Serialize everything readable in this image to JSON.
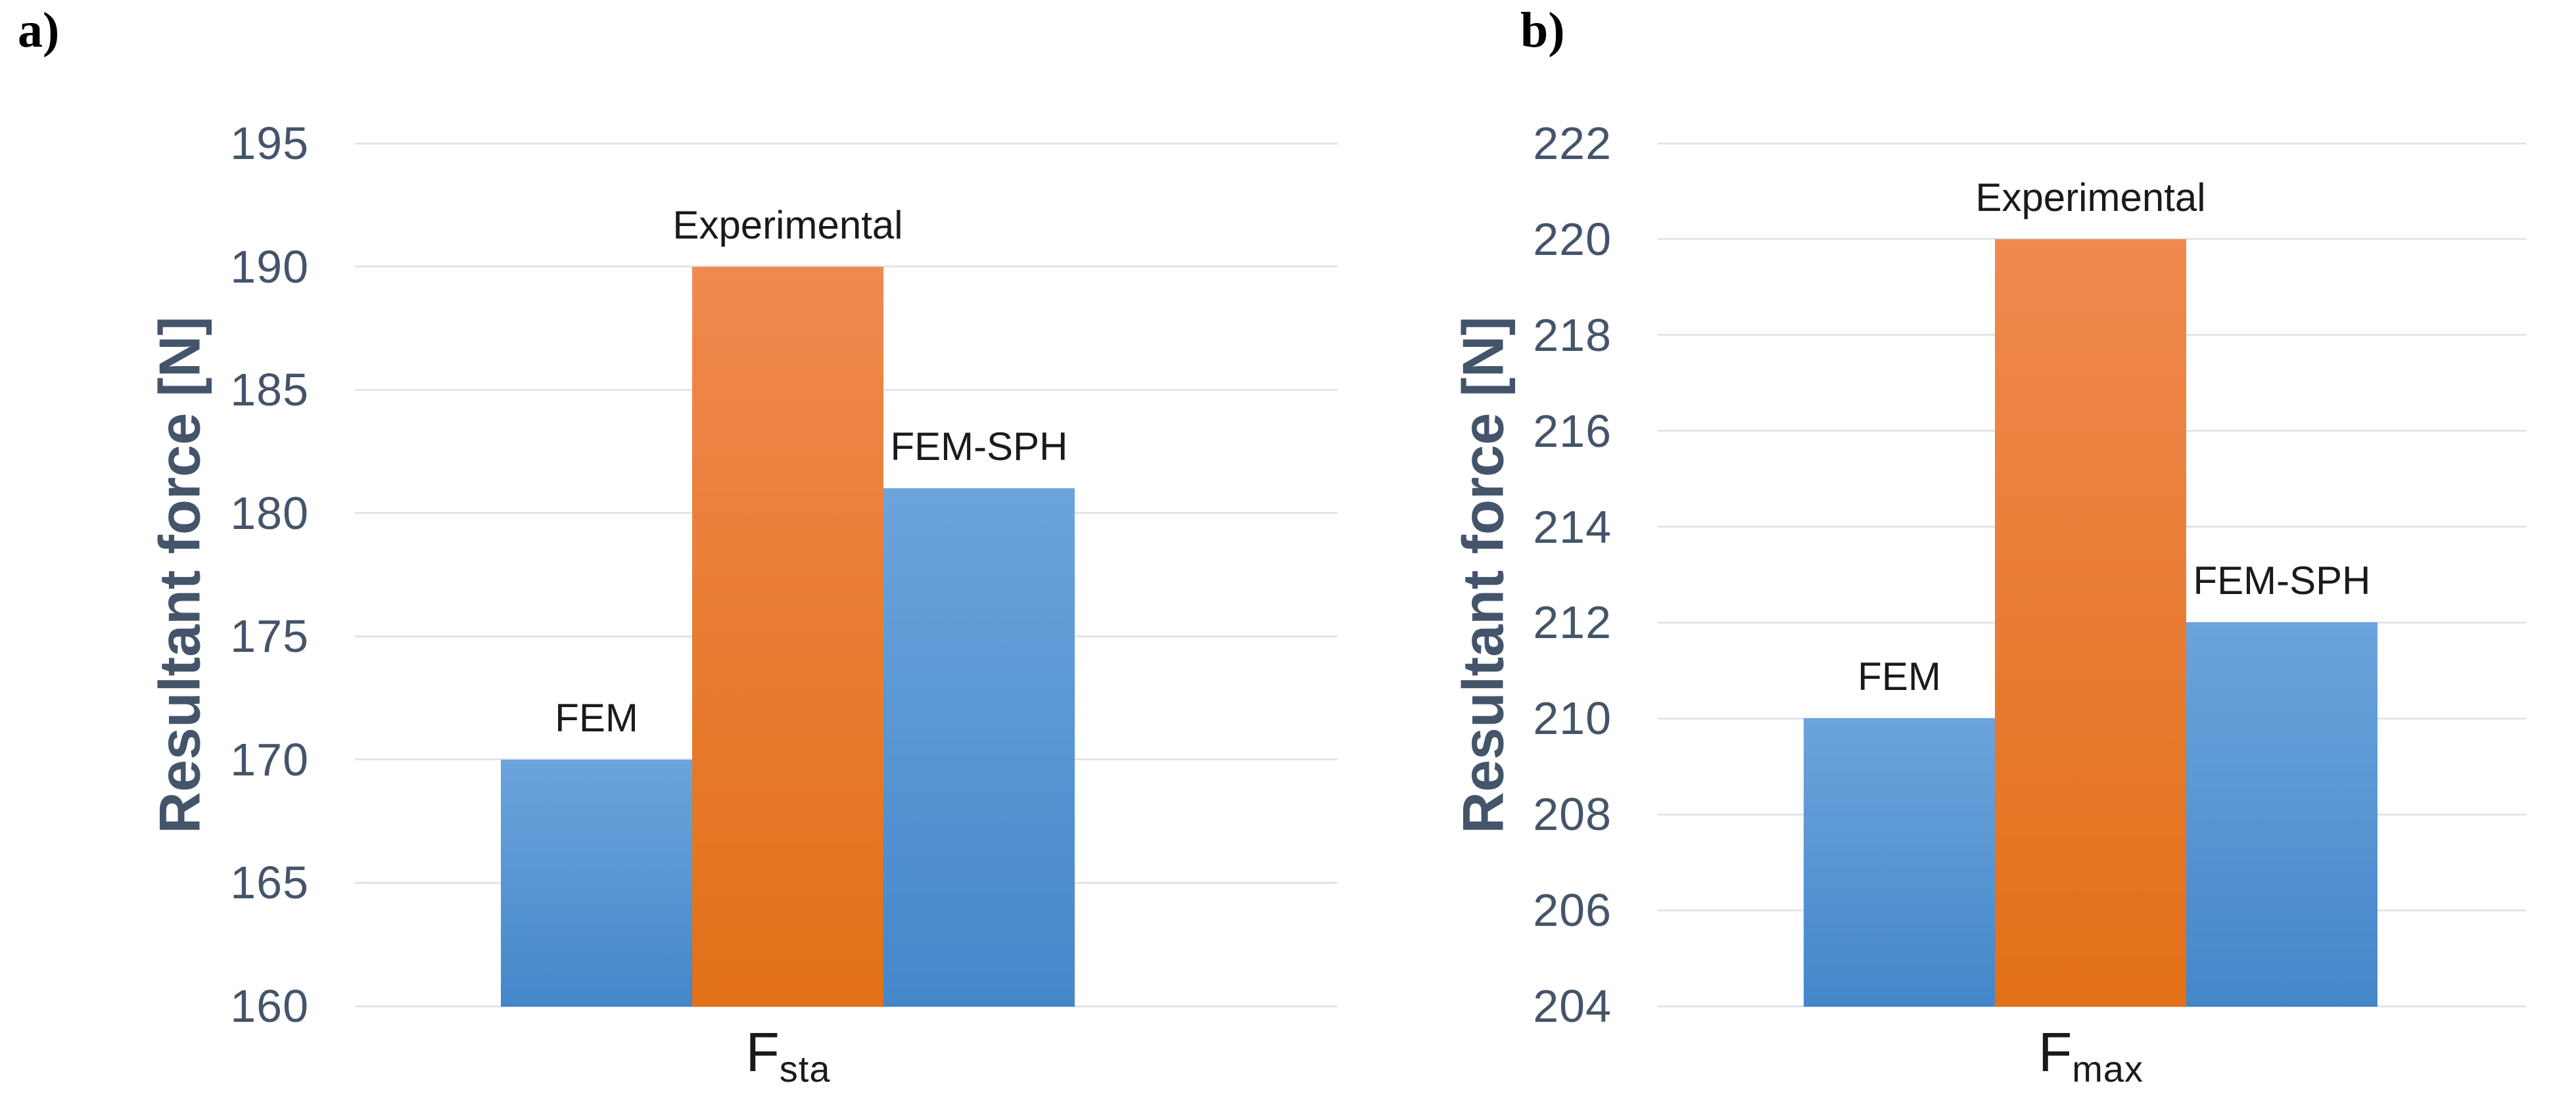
{
  "panel_labels": {
    "a": "a)",
    "b": "b)"
  },
  "colors": {
    "blue_top": "#6CA4DC",
    "blue_bottom": "#4487C9",
    "orange_top": "#F0894F",
    "orange_bottom": "#E17017",
    "grid": "#E1E5EC",
    "axis_text": "#44546A",
    "bar_label_text": "#1A1A1A"
  },
  "chart_data": [
    {
      "type": "bar",
      "panel": "a",
      "ylabel": "Resultant force [N]",
      "xlabel_main": "F",
      "xlabel_sub": "sta",
      "ylim": [
        160,
        195
      ],
      "ytick_step": 5,
      "yticks": [
        195,
        190,
        185,
        180,
        175,
        170,
        165,
        160
      ],
      "categories": [
        "FEM",
        "Experimental",
        "FEM-SPH"
      ],
      "values": [
        170,
        190,
        181
      ],
      "series_colors": [
        "blue",
        "orange",
        "blue"
      ],
      "grid": true,
      "legend": "none"
    },
    {
      "type": "bar",
      "panel": "b",
      "ylabel": "Resultant force [N]",
      "xlabel_main": "F",
      "xlabel_sub": "max",
      "ylim": [
        204,
        222
      ],
      "ytick_step": 2,
      "yticks": [
        222,
        220,
        218,
        216,
        214,
        212,
        210,
        208,
        206,
        204
      ],
      "categories": [
        "FEM",
        "Experimental",
        "FEM-SPH"
      ],
      "values": [
        210,
        220,
        212
      ],
      "series_colors": [
        "blue",
        "orange",
        "blue"
      ],
      "grid": true,
      "legend": "none"
    }
  ]
}
